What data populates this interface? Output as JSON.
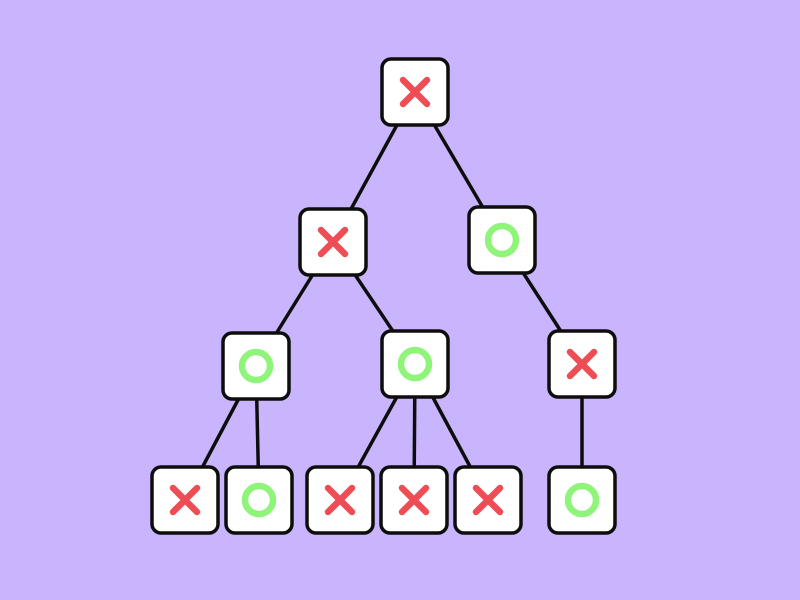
{
  "colors": {
    "background": "#c9b5fd",
    "node_fill": "#ffffff",
    "node_stroke": "#0d0d0d",
    "edge": "#0d0d0d",
    "x_mark": "#ef4d55",
    "o_mark": "#8ff57a"
  },
  "tree": {
    "root": {
      "mark": "x",
      "children": [
        {
          "mark": "x",
          "children": [
            {
              "mark": "o",
              "children": [
                {
                  "mark": "x"
                },
                {
                  "mark": "o"
                }
              ]
            },
            {
              "mark": "o",
              "children": [
                {
                  "mark": "x"
                },
                {
                  "mark": "x"
                },
                {
                  "mark": "x"
                }
              ]
            }
          ]
        },
        {
          "mark": "o",
          "children": [
            {
              "mark": "x",
              "children": [
                {
                  "mark": "o"
                }
              ]
            }
          ]
        }
      ]
    }
  }
}
